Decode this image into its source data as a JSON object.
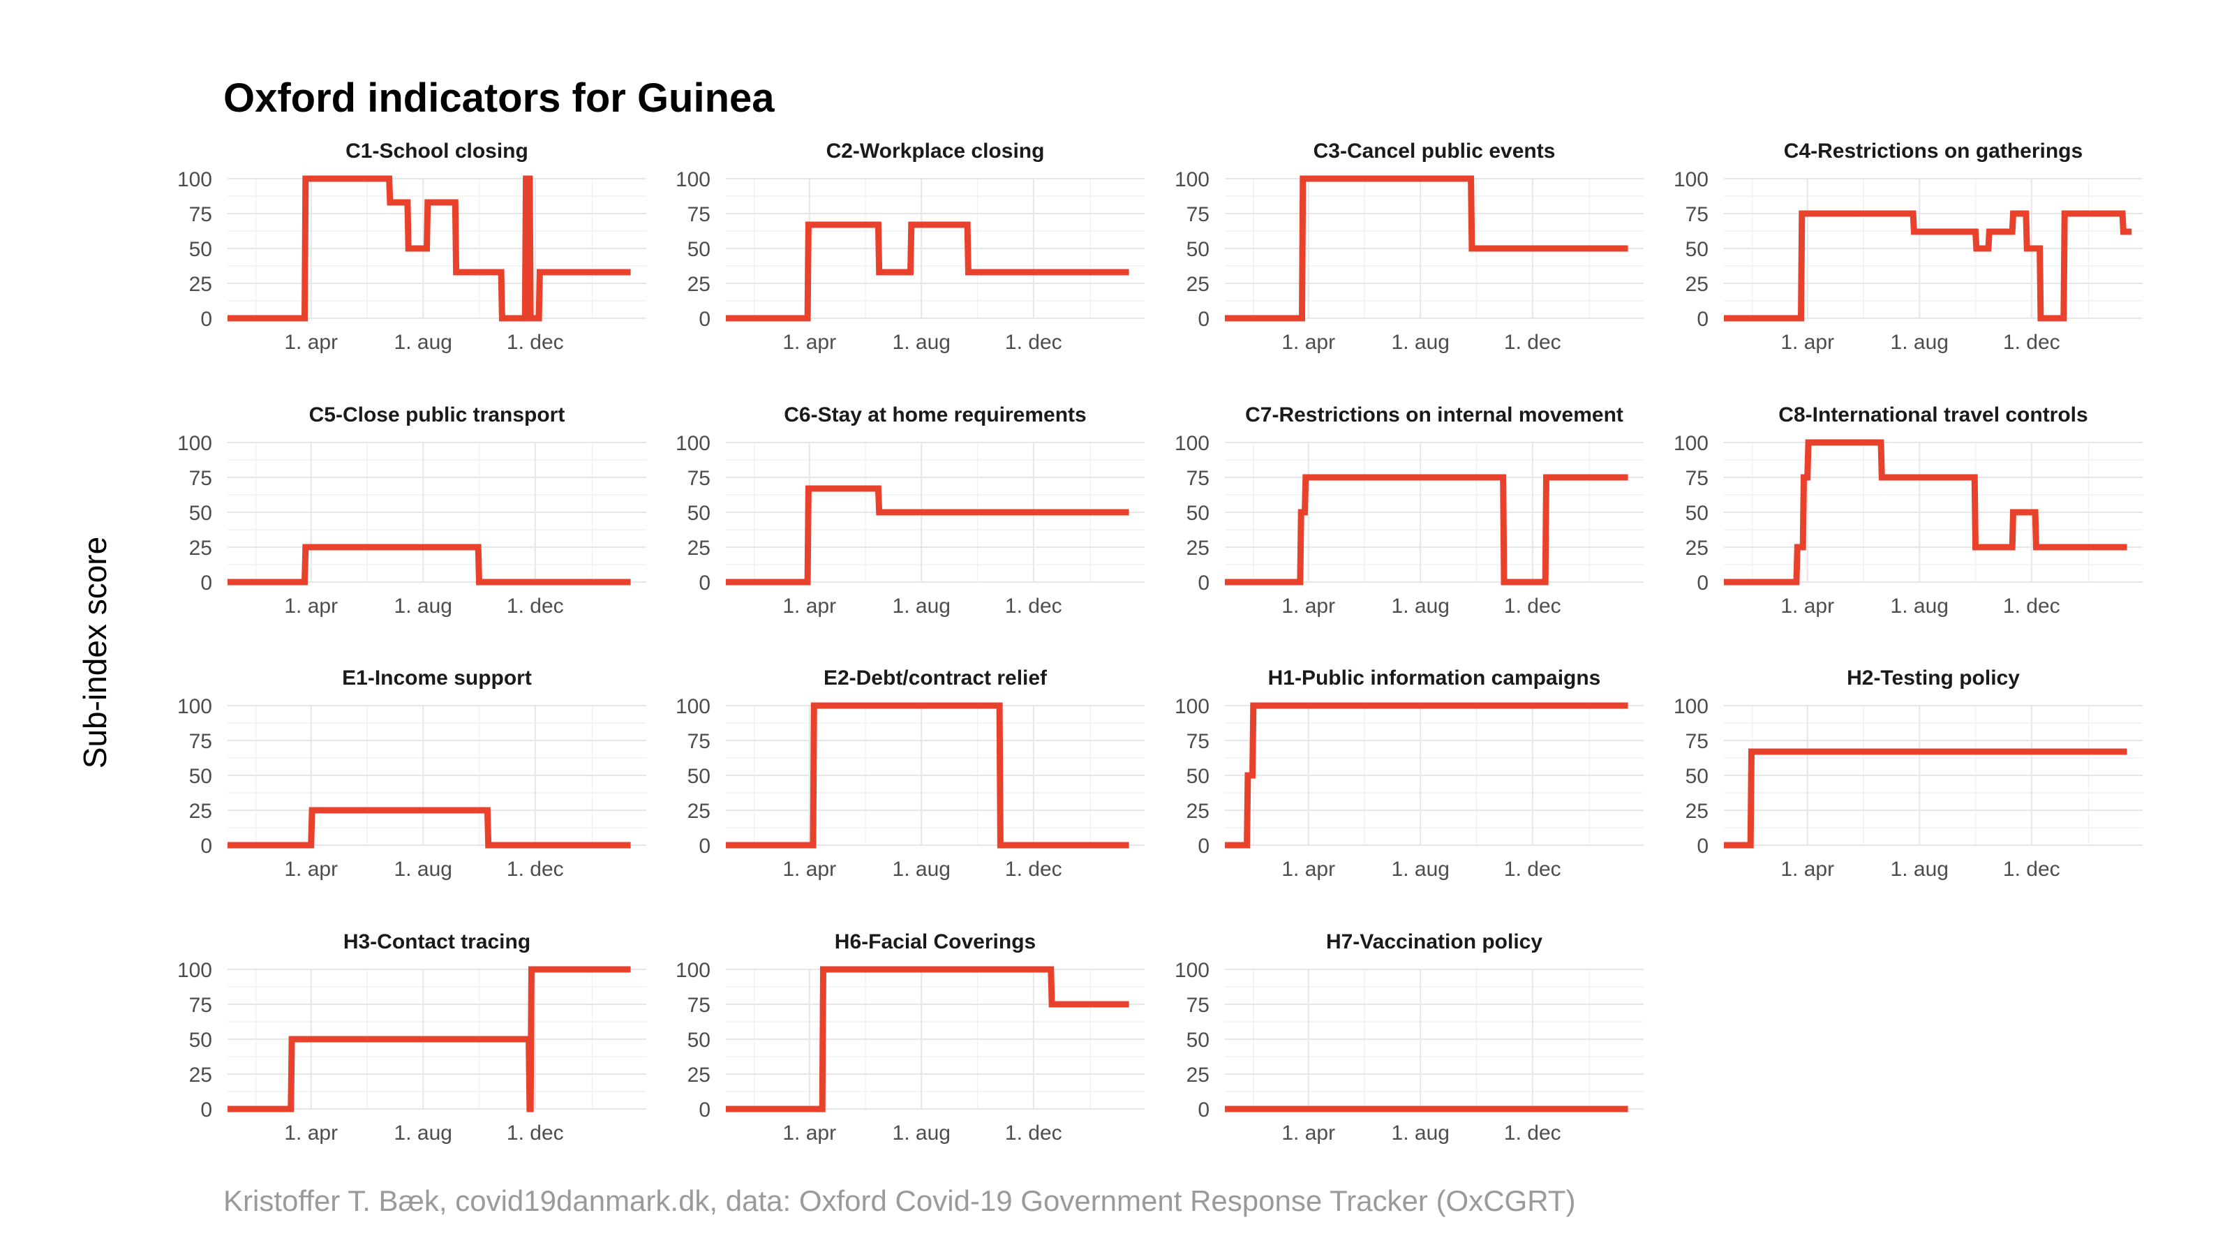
{
  "title": "Oxford indicators for Guinea",
  "ylabel": "Sub-index score",
  "caption": "Kristoffer T. Bæk, covid19danmark.dk, data: Oxford Covid-19 Government Response Tracker (OxCGRT)",
  "colors": {
    "line": "#e8412c",
    "grid": "#e6e6e6",
    "text": "#1a1a1a",
    "caption": "#9a9a9a"
  },
  "chart_data": [
    {
      "type": "line",
      "title": "C1-School closing",
      "x_range": [
        "2020-01-01",
        "2021-04-01"
      ],
      "ylim": [
        0,
        100
      ],
      "yticks": [
        0,
        25,
        50,
        75,
        100
      ],
      "xticks": [
        {
          "date": "2020-04-01",
          "label": "1. apr"
        },
        {
          "date": "2020-08-01",
          "label": "1. aug"
        },
        {
          "date": "2020-12-01",
          "label": "1. dec"
        }
      ],
      "series": [
        {
          "x": [
            "2020-01-01",
            "2020-03-25",
            "2020-03-26",
            "2020-06-25",
            "2020-06-26",
            "2020-07-15",
            "2020-07-16",
            "2020-08-05",
            "2020-08-06",
            "2020-09-05",
            "2020-09-06",
            "2020-10-25",
            "2020-10-26",
            "2020-11-20",
            "2020-11-21",
            "2020-11-25",
            "2020-11-26",
            "2020-12-05",
            "2020-12-06",
            "2021-03-15"
          ],
          "values": [
            0,
            0,
            100,
            100,
            83,
            83,
            50,
            50,
            83,
            83,
            33,
            33,
            0,
            0,
            100,
            100,
            0,
            0,
            33,
            33
          ]
        }
      ]
    },
    {
      "type": "line",
      "title": "C2-Workplace closing",
      "x_range": [
        "2020-01-01",
        "2021-04-01"
      ],
      "ylim": [
        0,
        100
      ],
      "yticks": [
        0,
        25,
        50,
        75,
        100
      ],
      "xticks": [
        {
          "date": "2020-04-01",
          "label": "1. apr"
        },
        {
          "date": "2020-08-01",
          "label": "1. aug"
        },
        {
          "date": "2020-12-01",
          "label": "1. dec"
        }
      ],
      "series": [
        {
          "x": [
            "2020-01-01",
            "2020-03-30",
            "2020-03-31",
            "2020-06-15",
            "2020-06-16",
            "2020-07-20",
            "2020-07-21",
            "2020-09-20",
            "2020-09-21",
            "2021-03-15"
          ],
          "values": [
            0,
            0,
            67,
            67,
            33,
            33,
            67,
            67,
            33,
            33
          ]
        }
      ]
    },
    {
      "type": "line",
      "title": "C3-Cancel public events",
      "x_range": [
        "2020-01-01",
        "2021-04-01"
      ],
      "ylim": [
        0,
        100
      ],
      "yticks": [
        0,
        25,
        50,
        75,
        100
      ],
      "xticks": [
        {
          "date": "2020-04-01",
          "label": "1. apr"
        },
        {
          "date": "2020-08-01",
          "label": "1. aug"
        },
        {
          "date": "2020-12-01",
          "label": "1. dec"
        }
      ],
      "series": [
        {
          "x": [
            "2020-01-01",
            "2020-03-25",
            "2020-03-26",
            "2020-09-25",
            "2020-09-26",
            "2021-03-15"
          ],
          "values": [
            0,
            0,
            100,
            100,
            50,
            50
          ]
        }
      ]
    },
    {
      "type": "line",
      "title": "C4-Restrictions on gatherings",
      "x_range": [
        "2020-01-01",
        "2021-04-01"
      ],
      "ylim": [
        0,
        100
      ],
      "yticks": [
        0,
        25,
        50,
        75,
        100
      ],
      "xticks": [
        {
          "date": "2020-04-01",
          "label": "1. apr"
        },
        {
          "date": "2020-08-01",
          "label": "1. aug"
        },
        {
          "date": "2020-12-01",
          "label": "1. dec"
        }
      ],
      "series": [
        {
          "x": [
            "2020-01-01",
            "2020-03-25",
            "2020-03-26",
            "2020-07-25",
            "2020-07-26",
            "2020-10-01",
            "2020-10-02",
            "2020-10-15",
            "2020-10-16",
            "2020-11-10",
            "2020-11-11",
            "2020-11-25",
            "2020-11-26",
            "2020-12-10",
            "2020-12-11",
            "2021-01-05",
            "2021-01-06",
            "2021-03-10",
            "2021-03-11",
            "2021-03-20"
          ],
          "values": [
            0,
            0,
            75,
            75,
            62,
            62,
            50,
            50,
            62,
            62,
            75,
            75,
            50,
            50,
            0,
            0,
            75,
            75,
            62,
            62
          ]
        }
      ]
    },
    {
      "type": "line",
      "title": "C5-Close public transport",
      "x_range": [
        "2020-01-01",
        "2021-04-01"
      ],
      "ylim": [
        0,
        100
      ],
      "yticks": [
        0,
        25,
        50,
        75,
        100
      ],
      "xticks": [
        {
          "date": "2020-04-01",
          "label": "1. apr"
        },
        {
          "date": "2020-08-01",
          "label": "1. aug"
        },
        {
          "date": "2020-12-01",
          "label": "1. dec"
        }
      ],
      "series": [
        {
          "x": [
            "2020-01-01",
            "2020-03-25",
            "2020-03-26",
            "2020-09-30",
            "2020-10-01",
            "2021-03-15"
          ],
          "values": [
            0,
            0,
            25,
            25,
            0,
            0
          ]
        }
      ]
    },
    {
      "type": "line",
      "title": "C6-Stay at home requirements",
      "x_range": [
        "2020-01-01",
        "2021-04-01"
      ],
      "ylim": [
        0,
        100
      ],
      "yticks": [
        0,
        25,
        50,
        75,
        100
      ],
      "xticks": [
        {
          "date": "2020-04-01",
          "label": "1. apr"
        },
        {
          "date": "2020-08-01",
          "label": "1. aug"
        },
        {
          "date": "2020-12-01",
          "label": "1. dec"
        }
      ],
      "series": [
        {
          "x": [
            "2020-01-01",
            "2020-03-30",
            "2020-03-31",
            "2020-06-15",
            "2020-06-16",
            "2021-03-15"
          ],
          "values": [
            0,
            0,
            67,
            67,
            50,
            50
          ]
        }
      ]
    },
    {
      "type": "line",
      "title": "C7-Restrictions on internal movement",
      "x_range": [
        "2020-01-01",
        "2021-04-01"
      ],
      "ylim": [
        0,
        100
      ],
      "yticks": [
        0,
        25,
        50,
        75,
        100
      ],
      "xticks": [
        {
          "date": "2020-04-01",
          "label": "1. apr"
        },
        {
          "date": "2020-08-01",
          "label": "1. aug"
        },
        {
          "date": "2020-12-01",
          "label": "1. dec"
        }
      ],
      "series": [
        {
          "x": [
            "2020-01-01",
            "2020-03-23",
            "2020-03-24",
            "2020-03-28",
            "2020-03-29",
            "2020-10-30",
            "2020-10-31",
            "2020-12-15",
            "2020-12-16",
            "2021-03-15"
          ],
          "values": [
            0,
            0,
            50,
            50,
            75,
            75,
            0,
            0,
            75,
            75
          ]
        }
      ]
    },
    {
      "type": "line",
      "title": "C8-International travel controls",
      "x_range": [
        "2020-01-01",
        "2021-04-01"
      ],
      "ylim": [
        0,
        100
      ],
      "yticks": [
        0,
        25,
        50,
        75,
        100
      ],
      "xticks": [
        {
          "date": "2020-04-01",
          "label": "1. apr"
        },
        {
          "date": "2020-08-01",
          "label": "1. aug"
        },
        {
          "date": "2020-12-01",
          "label": "1. dec"
        }
      ],
      "series": [
        {
          "x": [
            "2020-01-01",
            "2020-03-20",
            "2020-03-21",
            "2020-03-27",
            "2020-03-28",
            "2020-04-01",
            "2020-04-02",
            "2020-06-20",
            "2020-06-21",
            "2020-09-30",
            "2020-10-01",
            "2020-11-10",
            "2020-11-11",
            "2020-12-05",
            "2020-12-06",
            "2021-03-15"
          ],
          "values": [
            0,
            0,
            25,
            25,
            75,
            75,
            100,
            100,
            75,
            75,
            25,
            25,
            50,
            50,
            25,
            25
          ]
        }
      ]
    },
    {
      "type": "line",
      "title": "E1-Income support",
      "x_range": [
        "2020-01-01",
        "2021-04-01"
      ],
      "ylim": [
        0,
        100
      ],
      "yticks": [
        0,
        25,
        50,
        75,
        100
      ],
      "xticks": [
        {
          "date": "2020-04-01",
          "label": "1. apr"
        },
        {
          "date": "2020-08-01",
          "label": "1. aug"
        },
        {
          "date": "2020-12-01",
          "label": "1. dec"
        }
      ],
      "series": [
        {
          "x": [
            "2020-01-01",
            "2020-04-01",
            "2020-04-02",
            "2020-10-10",
            "2020-10-11",
            "2021-03-15"
          ],
          "values": [
            0,
            0,
            25,
            25,
            0,
            0
          ]
        }
      ]
    },
    {
      "type": "line",
      "title": "E2-Debt/contract relief",
      "x_range": [
        "2020-01-01",
        "2021-04-01"
      ],
      "ylim": [
        0,
        100
      ],
      "yticks": [
        0,
        25,
        50,
        75,
        100
      ],
      "xticks": [
        {
          "date": "2020-04-01",
          "label": "1. apr"
        },
        {
          "date": "2020-08-01",
          "label": "1. aug"
        },
        {
          "date": "2020-12-01",
          "label": "1. dec"
        }
      ],
      "series": [
        {
          "x": [
            "2020-01-01",
            "2020-04-05",
            "2020-04-06",
            "2020-10-25",
            "2020-10-26",
            "2021-03-15"
          ],
          "values": [
            0,
            0,
            100,
            100,
            0,
            0
          ]
        }
      ]
    },
    {
      "type": "line",
      "title": "H1-Public information campaigns",
      "x_range": [
        "2020-01-01",
        "2021-04-01"
      ],
      "ylim": [
        0,
        100
      ],
      "yticks": [
        0,
        25,
        50,
        75,
        100
      ],
      "xticks": [
        {
          "date": "2020-04-01",
          "label": "1. apr"
        },
        {
          "date": "2020-08-01",
          "label": "1. aug"
        },
        {
          "date": "2020-12-01",
          "label": "1. dec"
        }
      ],
      "series": [
        {
          "x": [
            "2020-01-01",
            "2020-01-25",
            "2020-01-26",
            "2020-01-31",
            "2020-02-01",
            "2021-03-15"
          ],
          "values": [
            0,
            0,
            50,
            50,
            100,
            100
          ]
        }
      ]
    },
    {
      "type": "line",
      "title": "H2-Testing policy",
      "x_range": [
        "2020-01-01",
        "2021-04-01"
      ],
      "ylim": [
        0,
        100
      ],
      "yticks": [
        0,
        25,
        50,
        75,
        100
      ],
      "xticks": [
        {
          "date": "2020-04-01",
          "label": "1. apr"
        },
        {
          "date": "2020-08-01",
          "label": "1. aug"
        },
        {
          "date": "2020-12-01",
          "label": "1. dec"
        }
      ],
      "series": [
        {
          "x": [
            "2020-01-01",
            "2020-01-30",
            "2020-01-31",
            "2021-03-15"
          ],
          "values": [
            0,
            0,
            67,
            67
          ]
        }
      ]
    },
    {
      "type": "line",
      "title": "H3-Contact tracing",
      "x_range": [
        "2020-01-01",
        "2021-04-01"
      ],
      "ylim": [
        0,
        100
      ],
      "yticks": [
        0,
        25,
        50,
        75,
        100
      ],
      "xticks": [
        {
          "date": "2020-04-01",
          "label": "1. apr"
        },
        {
          "date": "2020-08-01",
          "label": "1. aug"
        },
        {
          "date": "2020-12-01",
          "label": "1. dec"
        }
      ],
      "series": [
        {
          "x": [
            "2020-01-01",
            "2020-03-10",
            "2020-03-11",
            "2020-11-24",
            "2020-11-25",
            "2020-11-26",
            "2020-11-27",
            "2021-03-15"
          ],
          "values": [
            0,
            0,
            50,
            50,
            0,
            0,
            100,
            100
          ]
        }
      ]
    },
    {
      "type": "line",
      "title": "H6-Facial Coverings",
      "x_range": [
        "2020-01-01",
        "2021-04-01"
      ],
      "ylim": [
        0,
        100
      ],
      "yticks": [
        0,
        25,
        50,
        75,
        100
      ],
      "xticks": [
        {
          "date": "2020-04-01",
          "label": "1. apr"
        },
        {
          "date": "2020-08-01",
          "label": "1. aug"
        },
        {
          "date": "2020-12-01",
          "label": "1. dec"
        }
      ],
      "series": [
        {
          "x": [
            "2020-01-01",
            "2020-04-15",
            "2020-04-16",
            "2020-12-20",
            "2020-12-21",
            "2021-03-15"
          ],
          "values": [
            0,
            0,
            100,
            100,
            75,
            75
          ]
        }
      ]
    },
    {
      "type": "line",
      "title": "H7-Vaccination policy",
      "x_range": [
        "2020-01-01",
        "2021-04-01"
      ],
      "ylim": [
        0,
        100
      ],
      "yticks": [
        0,
        25,
        50,
        75,
        100
      ],
      "xticks": [
        {
          "date": "2020-04-01",
          "label": "1. apr"
        },
        {
          "date": "2020-08-01",
          "label": "1. aug"
        },
        {
          "date": "2020-12-01",
          "label": "1. dec"
        }
      ],
      "series": [
        {
          "x": [
            "2020-01-01",
            "2021-03-15"
          ],
          "values": [
            0,
            0
          ]
        }
      ]
    }
  ]
}
